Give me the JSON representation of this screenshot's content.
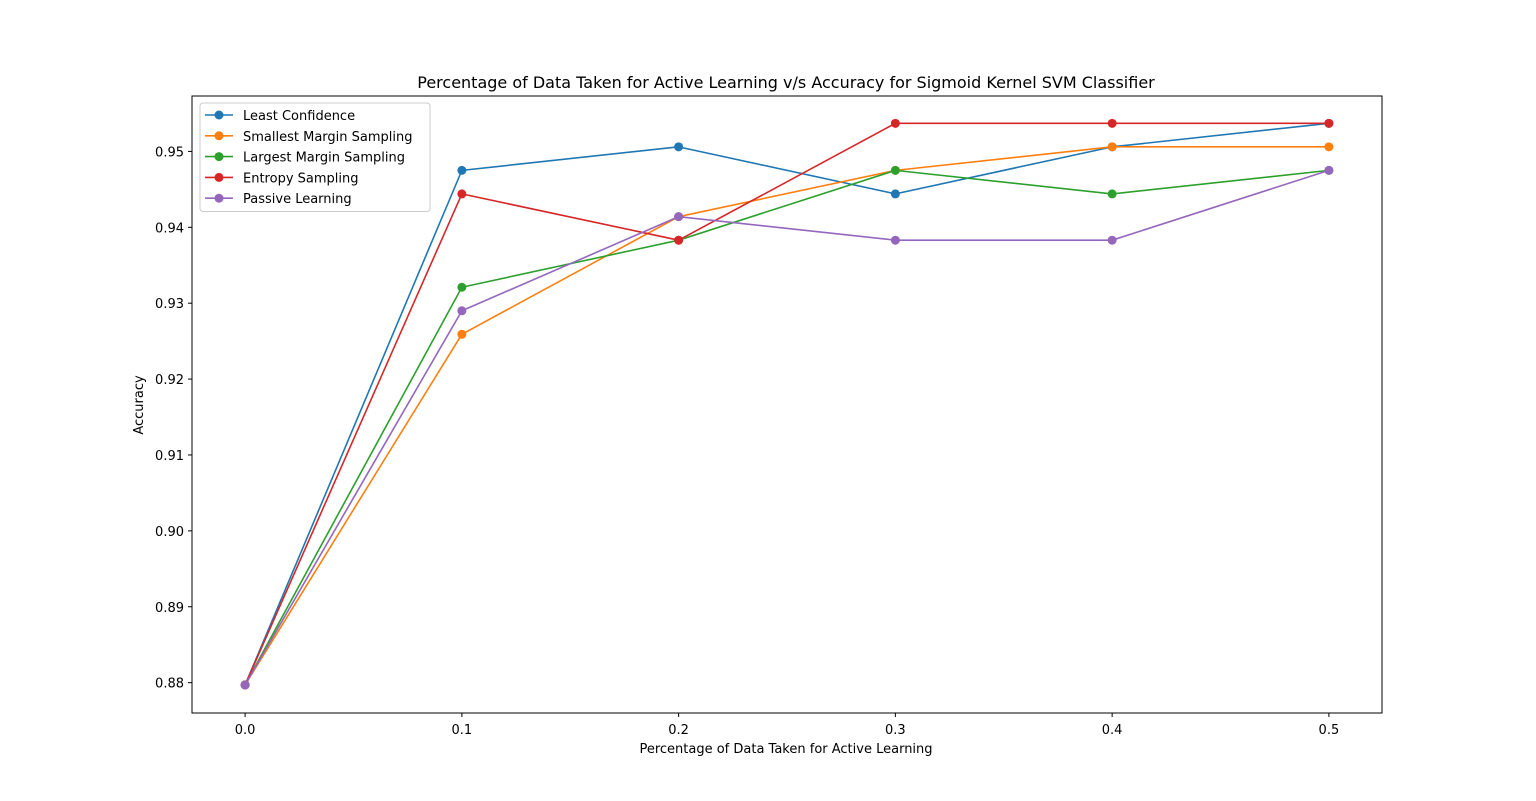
{
  "chart_data": {
    "type": "line",
    "title": "Percentage of Data Taken for Active Learning v/s Accuracy for Sigmoid Kernel SVM Classifier",
    "xlabel": "Percentage of Data Taken for Active Learning",
    "ylabel": "Accuracy",
    "x": [
      0.0,
      0.1,
      0.2,
      0.3,
      0.4,
      0.5
    ],
    "xlim": [
      -0.0245,
      0.5245
    ],
    "ylim": [
      0.876,
      0.9573
    ],
    "xticks": [
      "0.0",
      "0.1",
      "0.2",
      "0.3",
      "0.4",
      "0.5"
    ],
    "yticks": [
      "0.88",
      "0.89",
      "0.90",
      "0.91",
      "0.92",
      "0.93",
      "0.94",
      "0.95"
    ],
    "grid": false,
    "legend_position": "top-left",
    "series": [
      {
        "name": "Least Confidence",
        "color": "#1f77b4",
        "values": [
          0.8797,
          0.9475,
          0.9506,
          0.9444,
          0.9506,
          0.9537
        ]
      },
      {
        "name": "Smallest Margin Sampling",
        "color": "#ff7f0e",
        "values": [
          0.8797,
          0.9259,
          0.9414,
          0.9475,
          0.9506,
          0.9506
        ]
      },
      {
        "name": "Largest Margin Sampling",
        "color": "#2ca02c",
        "values": [
          0.8797,
          0.9321,
          0.9383,
          0.9475,
          0.9444,
          0.9475
        ]
      },
      {
        "name": "Entropy Sampling",
        "color": "#d62728",
        "values": [
          0.8797,
          0.9444,
          0.9383,
          0.9537,
          0.9537,
          0.9537
        ]
      },
      {
        "name": "Passive Learning",
        "color": "#9467bd",
        "values": [
          0.8797,
          0.929,
          0.9414,
          0.9383,
          0.9383,
          0.9475
        ]
      }
    ]
  }
}
